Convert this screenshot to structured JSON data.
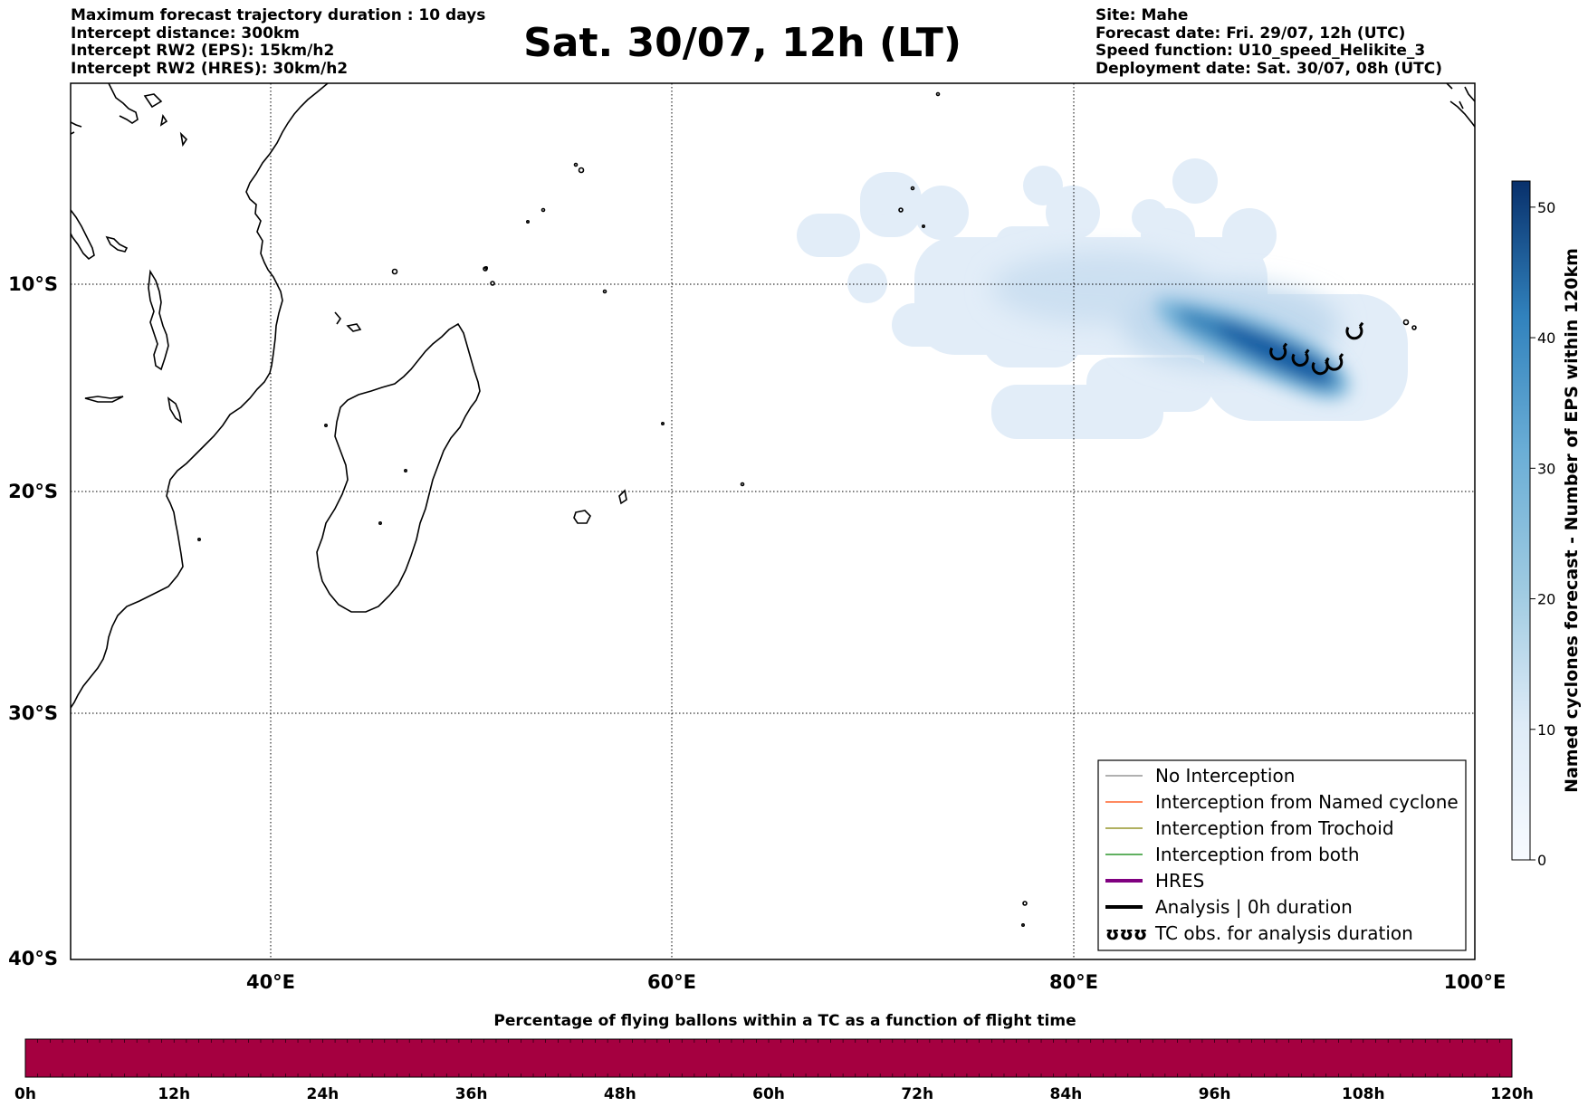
{
  "header": {
    "left_lines": [
      "Maximum forecast trajectory duration : 10 days",
      "Intercept distance: 300km",
      "Intercept RW2 (EPS):  15km/h2",
      "Intercept RW2 (HRES): 30km/h2"
    ],
    "title": "Sat. 30/07, 12h (LT)",
    "right_lines": [
      "Site: Mahe",
      "Forecast date: Fri. 29/07, 12h (UTC)",
      "Speed function: U10_speed_Helikite_3",
      "Deployment date: Sat. 30/07, 08h (UTC)"
    ]
  },
  "map": {
    "lon_range": [
      30,
      100
    ],
    "lat_range": [
      -40,
      -2
    ],
    "lat_labels": [
      "10°S",
      "20°S",
      "30°S",
      "40°S"
    ],
    "lon_labels": [
      "40°E",
      "60°E",
      "80°E",
      "100°E"
    ],
    "density_color_light": "#deebf7",
    "density_color_dark": "#08306b",
    "tc_obs_positions": [
      {
        "lon": 90.2,
        "lat": -13.3
      },
      {
        "lon": 91.3,
        "lat": -13.6
      },
      {
        "lon": 92.3,
        "lat": -14.0
      },
      {
        "lon": 93.0,
        "lat": -13.8
      },
      {
        "lon": 94.0,
        "lat": -12.3
      }
    ]
  },
  "colorbar": {
    "label": "Named cyclones forecast - Number of EPS within 120km",
    "ticks": [
      "0",
      "10",
      "20",
      "30",
      "40",
      "50"
    ],
    "tick_values": [
      0,
      10,
      20,
      30,
      40,
      50
    ],
    "max_value": 52
  },
  "legend": {
    "items": [
      {
        "label": "No Interception",
        "color": "#808080",
        "style": "thin"
      },
      {
        "label": "Interception from Named cyclone",
        "color": "#ff4500",
        "style": "thin"
      },
      {
        "label": "Interception from Trochoid",
        "color": "#808000",
        "style": "thin"
      },
      {
        "label": "Interception from both",
        "color": "#008000",
        "style": "thin"
      },
      {
        "label": "HRES",
        "color": "#800080",
        "style": "thick"
      },
      {
        "label": "Analysis | 0h duration",
        "color": "#000000",
        "style": "thick"
      },
      {
        "label": "TC obs. for analysis duration",
        "color": "#000000",
        "style": "symbol",
        "symbol": "ʊʊʊ"
      }
    ]
  },
  "bottom_bar": {
    "title": "Percentage of flying ballons within a TC as a function of flight time",
    "bar_color": "#a50040",
    "ticks": [
      "0h",
      "12h",
      "24h",
      "36h",
      "48h",
      "60h",
      "72h",
      "84h",
      "96h",
      "108h",
      "120h"
    ]
  }
}
